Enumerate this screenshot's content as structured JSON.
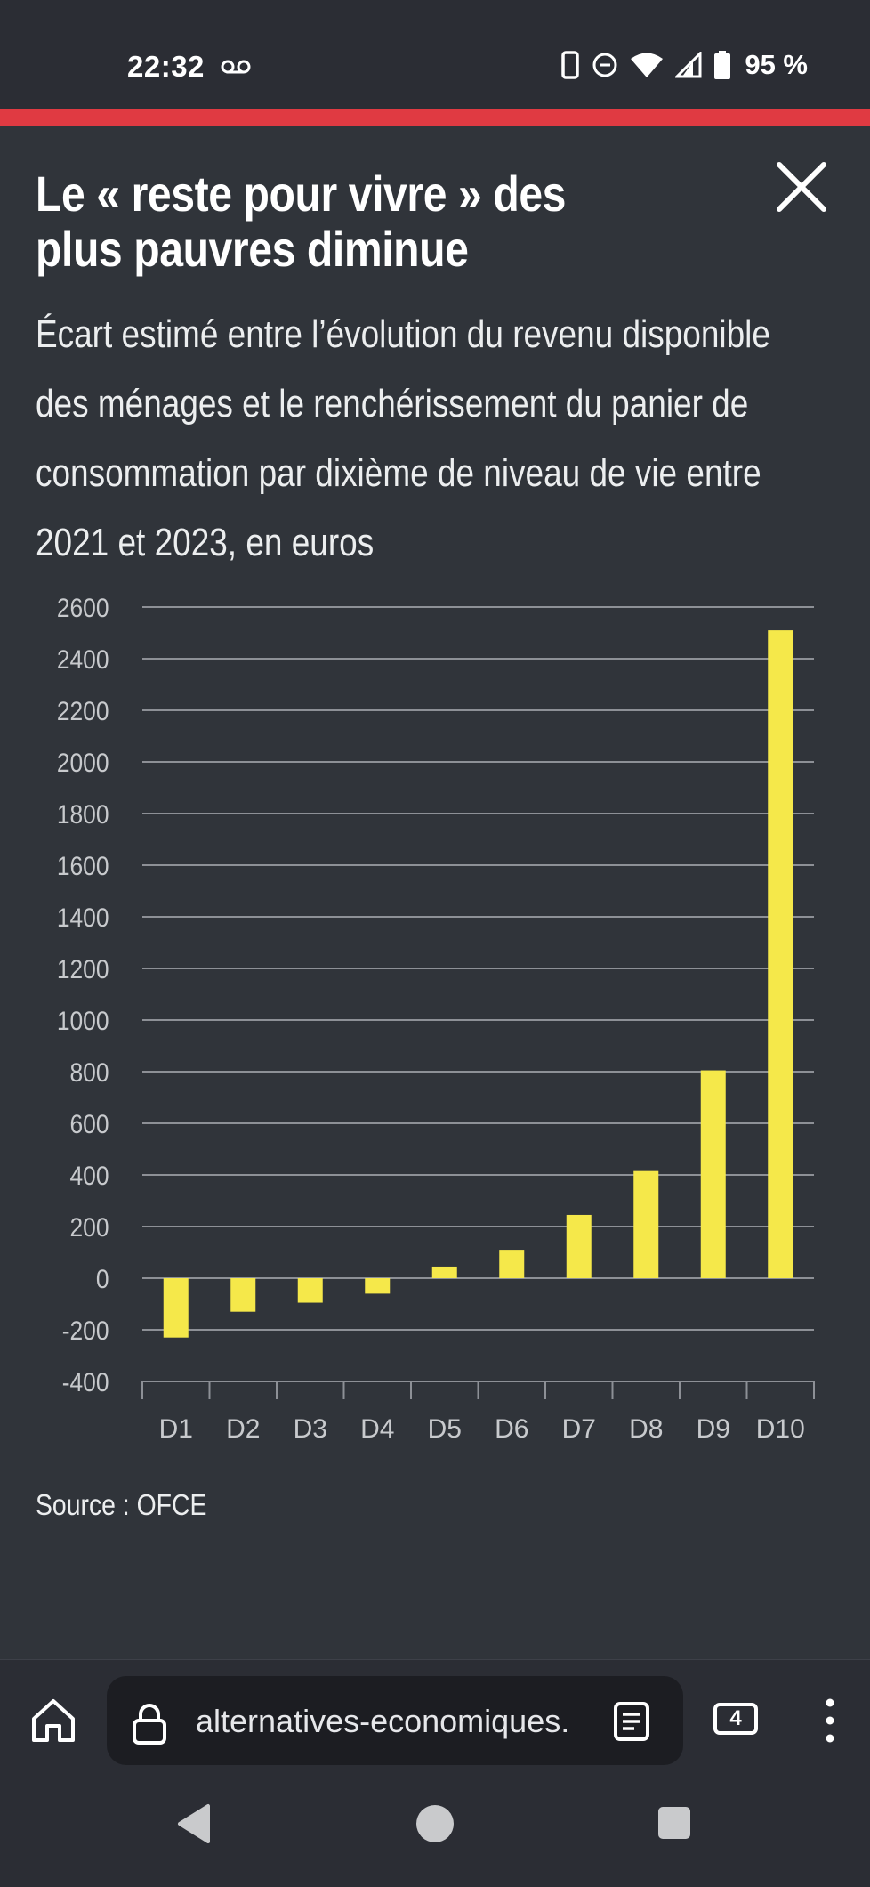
{
  "status_bar": {
    "time": "22:32",
    "battery": "95 %",
    "icons": [
      "voicemail-icon",
      "phone-icon",
      "do-not-disturb-icon",
      "wifi-icon",
      "signal-icon",
      "battery-icon"
    ]
  },
  "accent_color": "#e03a42",
  "article": {
    "title": "Le « reste pour vivre » des plus pauvres diminue",
    "subtitle": "Écart estimé entre l’évolution du revenu disponible des ménages et le renchérissement du panier de consommation par dixième de niveau de vie entre 2021 et 2023, en euros",
    "source": "Source : OFCE"
  },
  "chart_data": {
    "type": "bar",
    "categories": [
      "D1",
      "D2",
      "D3",
      "D4",
      "D5",
      "D6",
      "D7",
      "D8",
      "D9",
      "D10"
    ],
    "values": [
      -230,
      -130,
      -95,
      -60,
      45,
      110,
      245,
      415,
      805,
      2510
    ],
    "ylim": [
      -400,
      2600
    ],
    "yticks": [
      2600,
      2400,
      2200,
      2000,
      1800,
      1600,
      1400,
      1200,
      1000,
      800,
      600,
      400,
      200,
      0,
      -200,
      -400
    ],
    "grid": true,
    "bar_color": "#f5e84a"
  },
  "browser": {
    "url": "alternatives-economiques.fr",
    "tab_count": "4"
  }
}
